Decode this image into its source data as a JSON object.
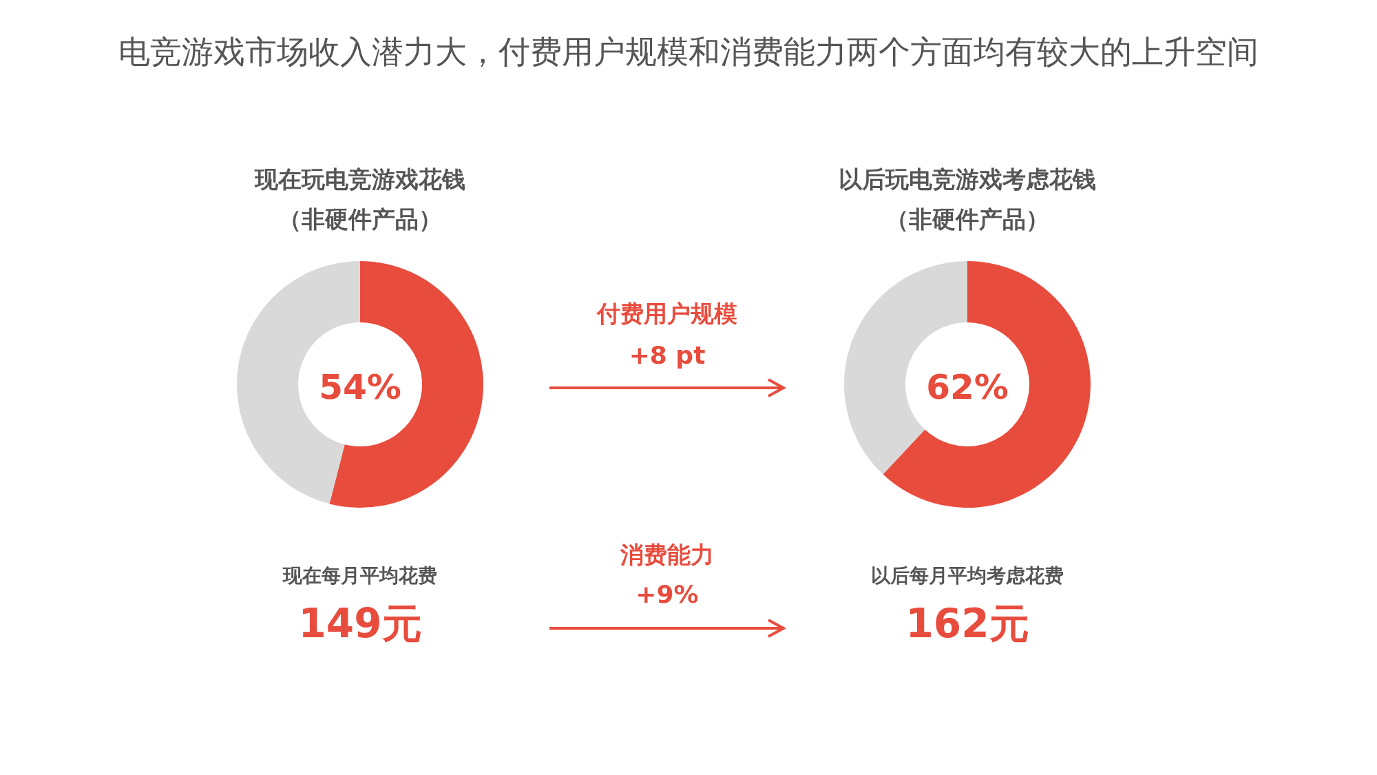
{
  "chart_data": [
    {
      "type": "other",
      "title": "电竞游戏市场收入潜力大，付费用户规模和消费能力两个方面均有较大的上升空间",
      "annotations": [
        "付费用户规模",
        "+8 pt",
        "消费能力",
        "+9%"
      ]
    },
    {
      "type": "donut",
      "title": "现在玩电竞游戏花钱",
      "subtitle": "（非硬件产品）",
      "categories": [
        null,
        null
      ],
      "values": [
        54,
        46
      ],
      "colors": [
        "#e84c3d",
        "#d9d9d9"
      ],
      "value_labels": [
        "54%",
        null
      ],
      "annotations": [
        "现在每月平均花费",
        "149元"
      ]
    },
    {
      "type": "donut",
      "title": "以后玩电竞游戏考虑花钱",
      "subtitle": "（非硬件产品）",
      "categories": [
        null,
        null
      ],
      "values": [
        62,
        38
      ],
      "colors": [
        "#e84c3d",
        "#d9d9d9"
      ],
      "value_labels": [
        "62%",
        null
      ],
      "annotations": [
        "以后每月平均考虑花费",
        "162元"
      ]
    }
  ]
}
